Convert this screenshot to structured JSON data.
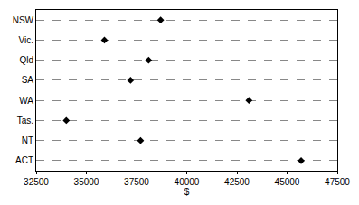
{
  "chart_data": {
    "type": "scatter",
    "orientation": "horizontal",
    "categories": [
      "NSW",
      "Vic.",
      "Qld",
      "SA",
      "WA",
      "Tas.",
      "NT",
      "ACT"
    ],
    "values": [
      38700,
      35900,
      38100,
      37200,
      43100,
      34000,
      37700,
      45700
    ],
    "color": "#000000",
    "marker": "diamond",
    "x_label": "$",
    "xlim": [
      32500,
      47500
    ],
    "xticks": [
      32500,
      35000,
      37500,
      40000,
      42500,
      45000,
      47500
    ],
    "grid": true
  }
}
